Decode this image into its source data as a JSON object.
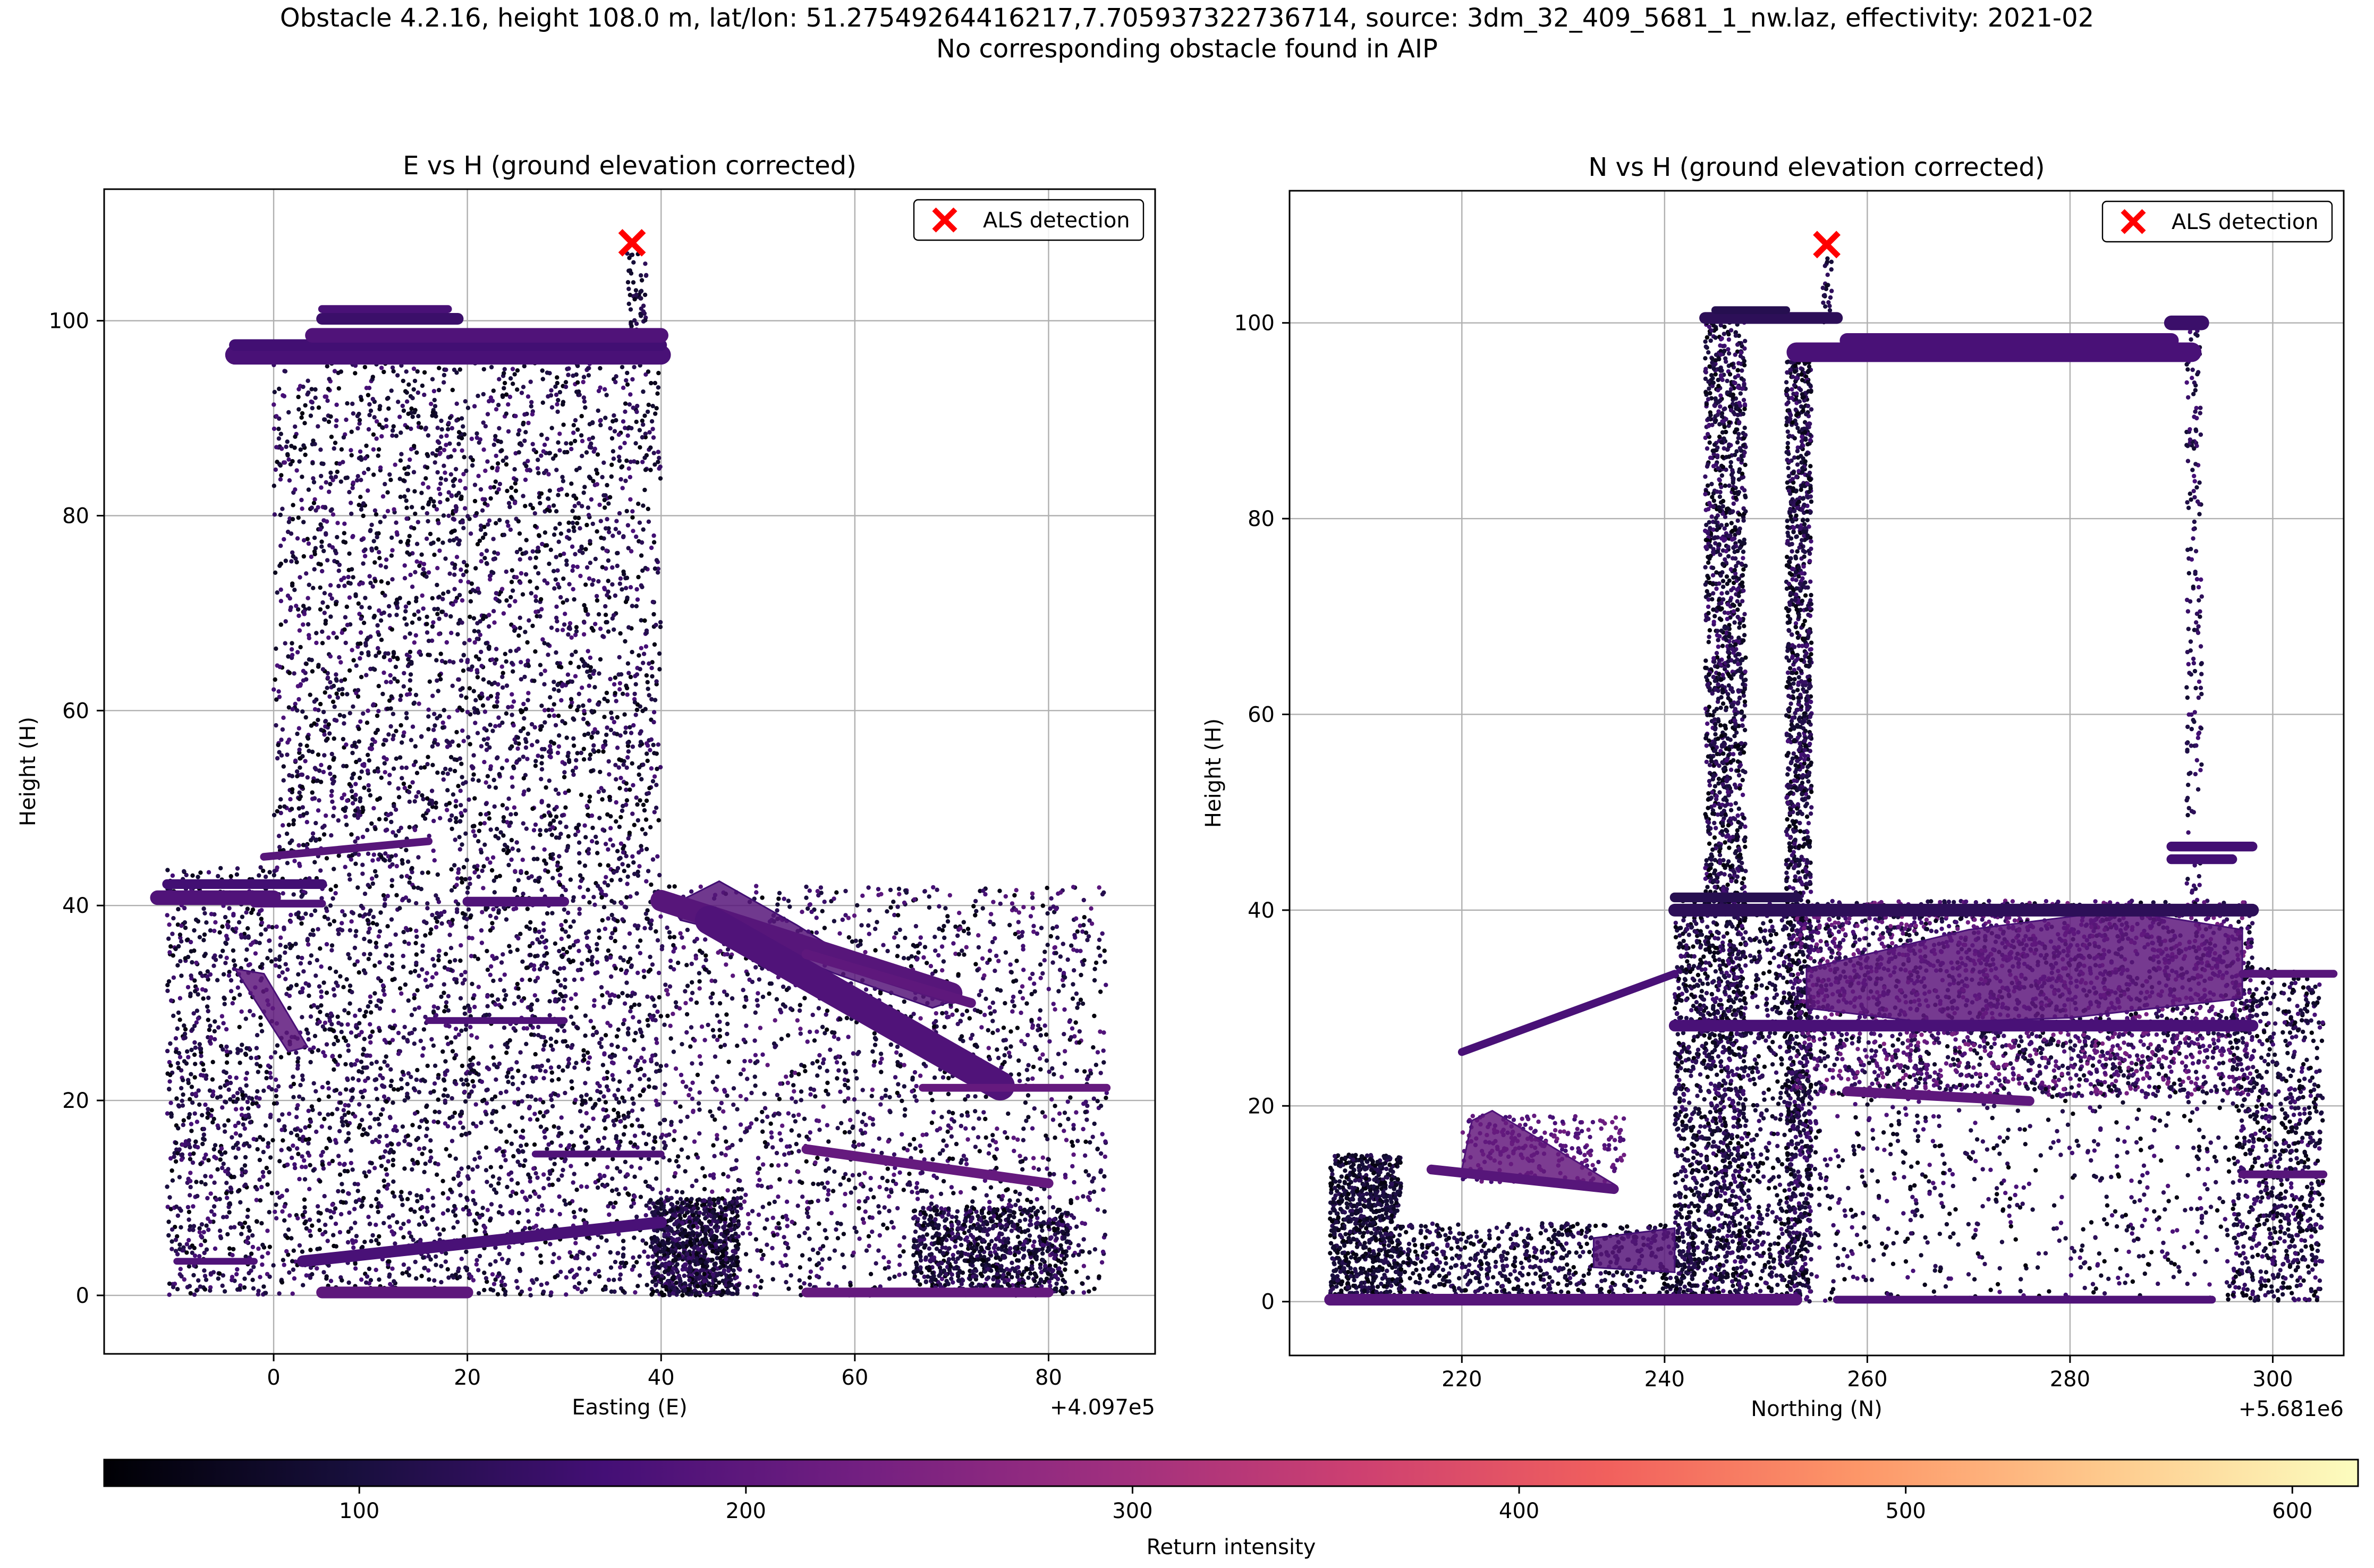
{
  "figure": {
    "title_line1": "Obstacle 4.2.16, height 108.0 m, lat/lon: 51.27549264416217,7.705937322736714, source: 3dm_32_409_5681_1_nw.laz, effectivity: 2021-02",
    "title_line2": "No corresponding obstacle found in AIP"
  },
  "chart_data": [
    {
      "type": "scatter",
      "title": "E vs H (ground elevation corrected)",
      "xlabel": "Easting (E)",
      "ylabel": "Height (H)",
      "x_offset_label": "+4.097e5",
      "xlim": [
        -17.5,
        91
      ],
      "ylim": [
        -6,
        113.5
      ],
      "xticks": [
        0,
        20,
        40,
        60,
        80
      ],
      "yticks": [
        0,
        20,
        40,
        60,
        80,
        100
      ],
      "grid": true,
      "legend": {
        "label": "ALS detection",
        "placement": "top-right"
      },
      "detection": {
        "x": 37,
        "y": 108.0,
        "marker": "x",
        "color": "#ff0000"
      },
      "point_regions": [
        {
          "x": [
            0,
            40
          ],
          "y": [
            0,
            96
          ],
          "count": 5200,
          "intensity": [
            40,
            180
          ]
        },
        {
          "x": [
            -11,
            0
          ],
          "y": [
            0,
            44
          ],
          "count": 800,
          "intensity": [
            40,
            180
          ]
        },
        {
          "x": [
            40,
            86
          ],
          "y": [
            0,
            42
          ],
          "count": 1900,
          "intensity": [
            40,
            200
          ]
        },
        {
          "x": [
            39,
            48
          ],
          "y": [
            0,
            10
          ],
          "count": 900,
          "intensity": [
            40,
            160
          ]
        },
        {
          "x": [
            66,
            82
          ],
          "y": [
            0,
            9
          ],
          "count": 800,
          "intensity": [
            40,
            160
          ]
        },
        {
          "x": [
            36.5,
            38.5
          ],
          "y": [
            96,
            107
          ],
          "count": 60,
          "intensity": [
            60,
            140
          ]
        }
      ],
      "segments": [
        {
          "x": [
            -4,
            40
          ],
          "y": [
            96.5,
            96.5
          ],
          "width": 2.0,
          "intensity": 170
        },
        {
          "x": [
            -4,
            40
          ],
          "y": [
            97.5,
            97.5
          ],
          "width": 1.2,
          "intensity": 160
        },
        {
          "x": [
            4,
            40
          ],
          "y": [
            98.5,
            98.5
          ],
          "width": 1.5,
          "intensity": 180
        },
        {
          "x": [
            5,
            19
          ],
          "y": [
            100.2,
            100.2
          ],
          "width": 1.2,
          "intensity": 150
        },
        {
          "x": [
            5,
            18
          ],
          "y": [
            101.2,
            101.2
          ],
          "width": 0.8,
          "intensity": 170
        },
        {
          "x": [
            -12,
            0
          ],
          "y": [
            40.8,
            40.8
          ],
          "width": 1.5,
          "intensity": 180
        },
        {
          "x": [
            -11,
            5
          ],
          "y": [
            42.2,
            42.2
          ],
          "width": 1.0,
          "intensity": 160
        },
        {
          "x": [
            -2,
            5
          ],
          "y": [
            40.2,
            40.2
          ],
          "width": 0.8,
          "intensity": 180
        },
        {
          "x": [
            -1,
            16
          ],
          "y": [
            45,
            46.6
          ],
          "width": 0.8,
          "intensity": 190
        },
        {
          "x": [
            20,
            30
          ],
          "y": [
            40.4,
            40.4
          ],
          "width": 1.0,
          "intensity": 180
        },
        {
          "x": [
            40,
            70
          ],
          "y": [
            40.5,
            31
          ],
          "width": 2.2,
          "intensity": 190
        },
        {
          "x": [
            45,
            75
          ],
          "y": [
            38.5,
            21.5
          ],
          "width": 3.0,
          "intensity": 180
        },
        {
          "x": [
            55,
            72
          ],
          "y": [
            35,
            30
          ],
          "width": 1.0,
          "intensity": 200
        },
        {
          "x": [
            67,
            86
          ],
          "y": [
            21.3,
            21.3
          ],
          "width": 0.8,
          "intensity": 210
        },
        {
          "x": [
            3,
            40
          ],
          "y": [
            3.5,
            7.5
          ],
          "width": 1.2,
          "intensity": 170
        },
        {
          "x": [
            55,
            80
          ],
          "y": [
            15,
            11.5
          ],
          "width": 1.0,
          "intensity": 210
        },
        {
          "x": [
            27,
            40
          ],
          "y": [
            14.5,
            14.5
          ],
          "width": 0.7,
          "intensity": 180
        },
        {
          "x": [
            16,
            30
          ],
          "y": [
            28.2,
            28.2
          ],
          "width": 0.7,
          "intensity": 180
        },
        {
          "x": [
            -10,
            -2
          ],
          "y": [
            3.5,
            3.5
          ],
          "width": 0.7,
          "intensity": 180
        },
        {
          "x": [
            5,
            20
          ],
          "y": [
            0.3,
            0.3
          ],
          "width": 1.2,
          "intensity": 200
        },
        {
          "x": [
            55,
            80
          ],
          "y": [
            0.3,
            0.3
          ],
          "width": 1.0,
          "intensity": 210
        }
      ],
      "polygons": [
        {
          "points": [
            [
              -4,
              33.5
            ],
            [
              -1,
              33
            ],
            [
              3.5,
              25.5
            ],
            [
              1.5,
              25
            ]
          ],
          "intensity": 200
        },
        {
          "points": [
            [
              41,
              40
            ],
            [
              46,
              42.5
            ],
            [
              54,
              38
            ],
            [
              62,
              33
            ],
            [
              71,
              30.5
            ],
            [
              68,
              29.5
            ],
            [
              58,
              33
            ],
            [
              48,
              37
            ],
            [
              42,
              38.5
            ]
          ],
          "intensity": 190
        }
      ]
    },
    {
      "type": "scatter",
      "title": "N vs H (ground elevation corrected)",
      "xlabel": "Northing (N)",
      "ylabel": "Height (H)",
      "x_offset_label": "+5.681e6",
      "xlim": [
        203,
        307
      ],
      "ylim": [
        -5.5,
        113.5
      ],
      "xticks": [
        220,
        240,
        260,
        280,
        300
      ],
      "yticks": [
        0,
        20,
        40,
        60,
        80,
        100
      ],
      "grid": true,
      "legend": {
        "label": "ALS detection",
        "placement": "top-right"
      },
      "detection": {
        "x": 256,
        "y": 108.0,
        "marker": "x",
        "color": "#ff0000"
      },
      "point_regions": [
        {
          "x": [
            244,
            248
          ],
          "y": [
            0,
            101
          ],
          "count": 2100,
          "intensity": [
            40,
            170
          ]
        },
        {
          "x": [
            252,
            254.5
          ],
          "y": [
            0,
            97
          ],
          "count": 1600,
          "intensity": [
            40,
            170
          ]
        },
        {
          "x": [
            241,
            244
          ],
          "y": [
            0,
            41
          ],
          "count": 500,
          "intensity": [
            40,
            160
          ]
        },
        {
          "x": [
            248,
            252
          ],
          "y": [
            0,
            41
          ],
          "count": 350,
          "intensity": [
            40,
            160
          ]
        },
        {
          "x": [
            207,
            214
          ],
          "y": [
            0,
            15
          ],
          "count": 900,
          "intensity": [
            40,
            130
          ]
        },
        {
          "x": [
            214,
            243
          ],
          "y": [
            0,
            8
          ],
          "count": 700,
          "intensity": [
            40,
            150
          ]
        },
        {
          "x": [
            253,
            298
          ],
          "y": [
            21,
            41
          ],
          "count": 3000,
          "intensity": [
            60,
            250
          ]
        },
        {
          "x": [
            254,
            305
          ],
          "y": [
            0,
            22
          ],
          "count": 700,
          "intensity": [
            40,
            180
          ]
        },
        {
          "x": [
            296,
            305
          ],
          "y": [
            0,
            34
          ],
          "count": 700,
          "intensity": [
            40,
            170
          ]
        },
        {
          "x": [
            291.5,
            293
          ],
          "y": [
            41,
            100
          ],
          "count": 160,
          "intensity": [
            80,
            170
          ]
        },
        {
          "x": [
            255.5,
            256.5
          ],
          "y": [
            100,
            107
          ],
          "count": 25,
          "intensity": [
            60,
            140
          ]
        },
        {
          "x": [
            220,
            236
          ],
          "y": [
            12,
            19
          ],
          "count": 250,
          "intensity": [
            150,
            230
          ]
        }
      ],
      "segments": [
        {
          "x": [
            253,
            292
          ],
          "y": [
            97,
            97
          ],
          "width": 2.0,
          "intensity": 170
        },
        {
          "x": [
            258,
            290
          ],
          "y": [
            98.2,
            98.2
          ],
          "width": 1.5,
          "intensity": 170
        },
        {
          "x": [
            244,
            257
          ],
          "y": [
            100.5,
            100.5
          ],
          "width": 1.2,
          "intensity": 130
        },
        {
          "x": [
            245,
            252
          ],
          "y": [
            101.3,
            101.3
          ],
          "width": 0.8,
          "intensity": 120
        },
        {
          "x": [
            290,
            293
          ],
          "y": [
            100,
            100
          ],
          "width": 1.5,
          "intensity": 150
        },
        {
          "x": [
            241,
            298
          ],
          "y": [
            40,
            40
          ],
          "width": 1.3,
          "intensity": 130
        },
        {
          "x": [
            241,
            253
          ],
          "y": [
            41.3,
            41.3
          ],
          "width": 1.0,
          "intensity": 120
        },
        {
          "x": [
            290,
            298
          ],
          "y": [
            46.5,
            46.5
          ],
          "width": 1.0,
          "intensity": 160
        },
        {
          "x": [
            290,
            296
          ],
          "y": [
            45.2,
            45.2
          ],
          "width": 1.0,
          "intensity": 160
        },
        {
          "x": [
            220,
            241
          ],
          "y": [
            25.5,
            33.5
          ],
          "width": 0.8,
          "intensity": 170
        },
        {
          "x": [
            241,
            298
          ],
          "y": [
            28.2,
            28.2
          ],
          "width": 1.2,
          "intensity": 170
        },
        {
          "x": [
            258,
            276
          ],
          "y": [
            21.5,
            20.5
          ],
          "width": 1.0,
          "intensity": 200
        },
        {
          "x": [
            297,
            306
          ],
          "y": [
            33.5,
            33.5
          ],
          "width": 0.8,
          "intensity": 190
        },
        {
          "x": [
            297,
            305
          ],
          "y": [
            13,
            13
          ],
          "width": 0.8,
          "intensity": 190
        },
        {
          "x": [
            217,
            235
          ],
          "y": [
            13.5,
            11.5
          ],
          "width": 1.0,
          "intensity": 190
        },
        {
          "x": [
            207,
            253
          ],
          "y": [
            0.2,
            0.2
          ],
          "width": 1.2,
          "intensity": 190
        },
        {
          "x": [
            257,
            294
          ],
          "y": [
            0.2,
            0.2
          ],
          "width": 0.8,
          "intensity": 180
        }
      ],
      "polygons": [
        {
          "points": [
            [
              254,
              34
            ],
            [
              270,
              38
            ],
            [
              285,
              40
            ],
            [
              297,
              38
            ],
            [
              297,
              31
            ],
            [
              280,
              29
            ],
            [
              266,
              28.5
            ],
            [
              254,
              30
            ]
          ],
          "intensity": 200
        },
        {
          "points": [
            [
              233,
              6.5
            ],
            [
              241,
              7.5
            ],
            [
              241,
              3
            ],
            [
              233,
              3.5
            ]
          ],
          "intensity": 190
        },
        {
          "points": [
            [
              220,
              13.5
            ],
            [
              221,
              18.5
            ],
            [
              223,
              19.5
            ],
            [
              227,
              17
            ],
            [
              235,
              12
            ],
            [
              233,
              11.5
            ],
            [
              223,
              12.5
            ]
          ],
          "intensity": 210
        }
      ]
    }
  ],
  "colorbar": {
    "label": "Return intensity",
    "colormap": "magma",
    "range": [
      34,
      617
    ],
    "ticks": [
      100,
      200,
      300,
      400,
      500,
      600
    ]
  },
  "colors": {
    "detection": "#ff0000",
    "magma": [
      "#000004",
      "#180f3d",
      "#440f76",
      "#721f81",
      "#9e2f7f",
      "#cd4071",
      "#f1605d",
      "#fd9668",
      "#feca8d",
      "#fcfdbf"
    ]
  }
}
